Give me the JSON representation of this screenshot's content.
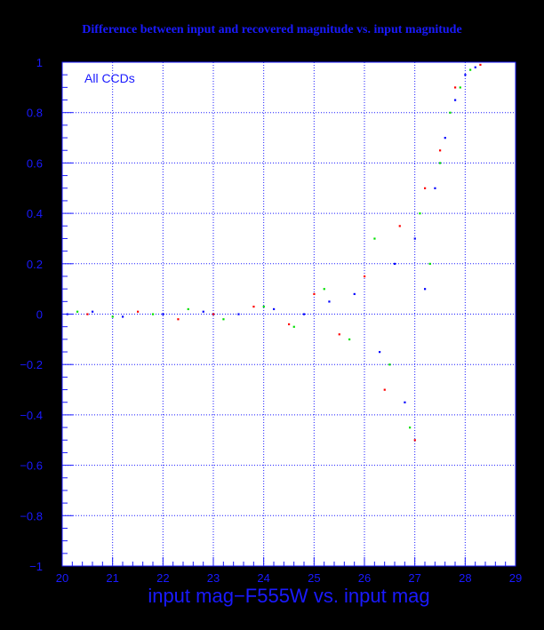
{
  "chart_data": {
    "type": "scatter",
    "title": "Difference between input and recovered magnitude vs. input magnitude",
    "xlabel": "input mag−F555W vs. input mag",
    "ylabel": "",
    "annotation": "All CCDs",
    "xlim": [
      20,
      29
    ],
    "ylim": [
      -1,
      1
    ],
    "x_ticks": [
      "20",
      "21",
      "22",
      "23",
      "24",
      "25",
      "26",
      "27",
      "28",
      "29"
    ],
    "y_ticks": [
      "1",
      "0.8",
      "0.6",
      "0.4",
      "0.2",
      "0",
      "−0.2",
      "−0.4",
      "−0.6",
      "−0.8",
      "−1"
    ],
    "grid": true,
    "series": [
      {
        "color": "#0000ff",
        "values": [
          [
            20.1,
            0.0
          ],
          [
            20.6,
            0.01
          ],
          [
            21.2,
            -0.01
          ],
          [
            22.0,
            0.0
          ],
          [
            22.8,
            0.01
          ],
          [
            23.5,
            0.0
          ],
          [
            24.2,
            0.02
          ],
          [
            24.8,
            0.0
          ],
          [
            25.3,
            0.05
          ],
          [
            25.8,
            0.08
          ],
          [
            26.3,
            -0.15
          ],
          [
            26.6,
            0.2
          ],
          [
            26.8,
            -0.35
          ],
          [
            27.0,
            0.3
          ],
          [
            27.2,
            0.1
          ],
          [
            27.4,
            0.5
          ],
          [
            27.6,
            0.7
          ],
          [
            27.8,
            0.85
          ],
          [
            28.0,
            0.95
          ],
          [
            28.2,
            0.98
          ]
        ]
      },
      {
        "color": "#00e000",
        "values": [
          [
            20.3,
            0.01
          ],
          [
            21.0,
            -0.01
          ],
          [
            21.8,
            0.0
          ],
          [
            22.5,
            0.02
          ],
          [
            23.2,
            -0.02
          ],
          [
            24.0,
            0.03
          ],
          [
            24.6,
            -0.05
          ],
          [
            25.2,
            0.1
          ],
          [
            25.7,
            -0.1
          ],
          [
            26.2,
            0.3
          ],
          [
            26.5,
            -0.2
          ],
          [
            26.9,
            -0.45
          ],
          [
            27.1,
            0.4
          ],
          [
            27.3,
            0.2
          ],
          [
            27.5,
            0.6
          ],
          [
            27.7,
            0.8
          ],
          [
            27.9,
            0.9
          ],
          [
            28.1,
            0.97
          ]
        ]
      },
      {
        "color": "#ff0000",
        "values": [
          [
            20.5,
            0.0
          ],
          [
            21.5,
            0.01
          ],
          [
            22.3,
            -0.02
          ],
          [
            23.0,
            0.0
          ],
          [
            23.8,
            0.03
          ],
          [
            24.5,
            -0.04
          ],
          [
            25.0,
            0.08
          ],
          [
            25.5,
            -0.08
          ],
          [
            26.0,
            0.15
          ],
          [
            26.4,
            -0.3
          ],
          [
            26.7,
            0.35
          ],
          [
            27.0,
            -0.5
          ],
          [
            27.2,
            0.5
          ],
          [
            27.5,
            0.65
          ],
          [
            27.8,
            0.9
          ],
          [
            28.3,
            0.99
          ]
        ]
      }
    ]
  },
  "colors": {
    "axis": "#1a1aff",
    "background": "#ffffff",
    "page": "#000000"
  }
}
